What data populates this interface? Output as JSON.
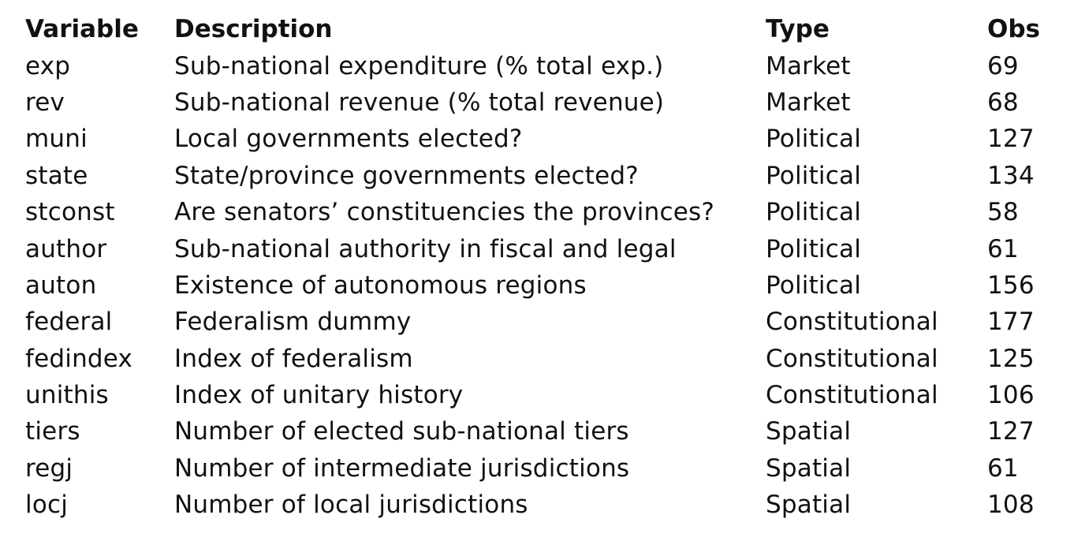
{
  "table": {
    "headers": [
      "Variable",
      "Description",
      "Type",
      "Obs"
    ],
    "rows": [
      [
        "exp",
        "Sub-national expenditure (% total exp.)",
        "Market",
        "69"
      ],
      [
        "rev",
        "Sub-national revenue (% total revenue)",
        "Market",
        "68"
      ],
      [
        "muni",
        "Local governments elected?",
        "Political",
        "127"
      ],
      [
        "state",
        "State/province governments elected?",
        "Political",
        "134"
      ],
      [
        "stconst",
        "Are senators’ constituencies the provinces?",
        "Political",
        "58"
      ],
      [
        "author",
        "Sub-national authority in fiscal and legal",
        "Political",
        "61"
      ],
      [
        "auton",
        "Existence of autonomous regions",
        "Political",
        "156"
      ],
      [
        "federal",
        "Federalism dummy",
        "Constitutional",
        "177"
      ],
      [
        "fedindex",
        "Index of federalism",
        "Constitutional",
        "125"
      ],
      [
        "unithis",
        "Index of unitary history",
        "Constitutional",
        "106"
      ],
      [
        "tiers",
        "Number of elected sub-national tiers",
        "Spatial",
        "127"
      ],
      [
        "regj",
        "Number of intermediate jurisdictions",
        "Spatial",
        "61"
      ],
      [
        "locj",
        "Number of local jurisdictions",
        "Spatial",
        "108"
      ]
    ]
  }
}
